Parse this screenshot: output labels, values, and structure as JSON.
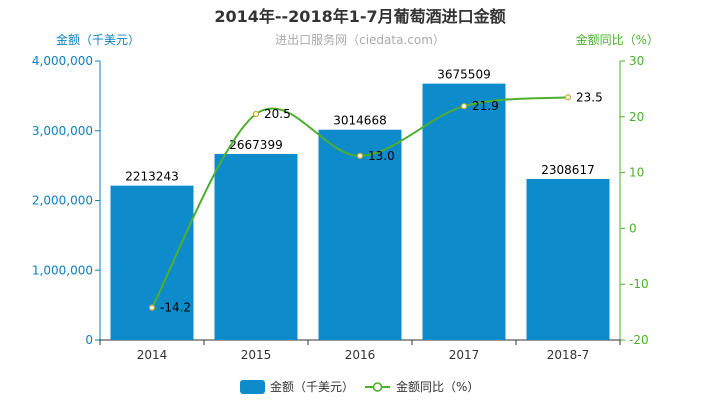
{
  "chart_data": {
    "type": "bar",
    "title": "2014年--2018年1-7月葡萄酒进口金额",
    "subtitle": "进出口服务网（ciedata.com）",
    "categories": [
      "2014",
      "2015",
      "2016",
      "2017",
      "2018-7"
    ],
    "y_left": {
      "label": "金额（千美元）",
      "ylim": [
        0,
        4000000
      ],
      "ticks": [
        0,
        1000000,
        2000000,
        3000000,
        4000000
      ],
      "tick_labels": [
        "0",
        "1,000,000",
        "2,000,000",
        "3,000,000",
        "4,000,000"
      ]
    },
    "y_right": {
      "label": "金额同比（%）",
      "ylim": [
        -20,
        30
      ],
      "ticks": [
        -20,
        -10,
        0,
        10,
        20,
        30
      ],
      "tick_labels": [
        "-20",
        "-10",
        "0",
        "10",
        "20",
        "30"
      ]
    },
    "series": [
      {
        "name": "金额（千美元）",
        "type": "bar",
        "axis": "left",
        "color": "#0e8bcb",
        "values": [
          2213243,
          2667399,
          3014668,
          3675509,
          2308617
        ],
        "labels": [
          "2213243",
          "2667399",
          "3014668",
          "3675509",
          "2308617"
        ]
      },
      {
        "name": "金额同比（%）",
        "type": "line",
        "axis": "right",
        "color": "#4daf2d",
        "values": [
          -14.2,
          20.5,
          13.0,
          21.9,
          23.5
        ],
        "labels": [
          "-14.2",
          "20.5",
          "13.0",
          "21.9",
          "23.5"
        ]
      }
    ],
    "grid": false,
    "legend": "bottom-center"
  }
}
